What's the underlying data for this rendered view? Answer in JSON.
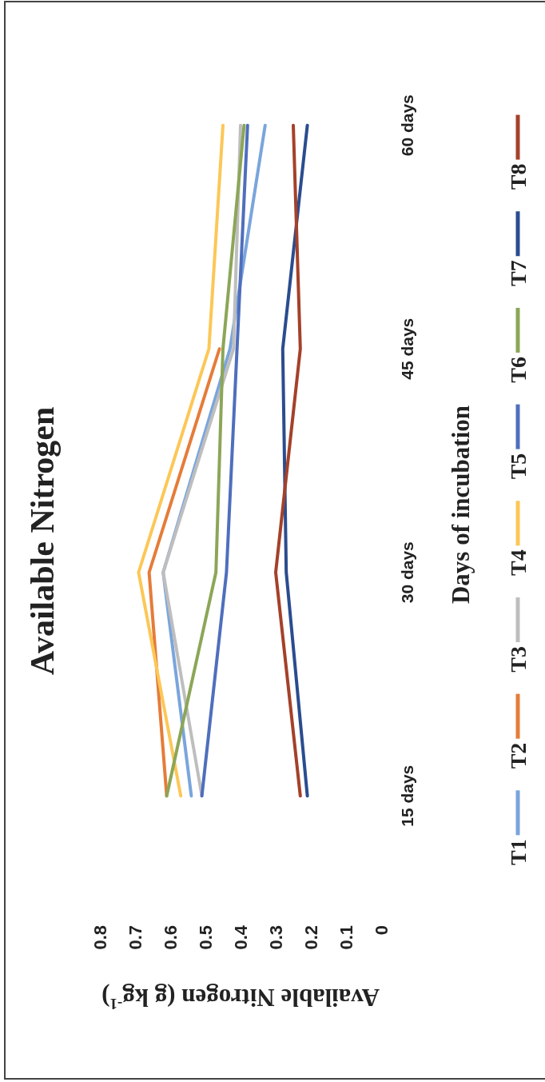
{
  "chart_data": {
    "type": "line",
    "orientation": "horizontal",
    "title": "Available Nitrogen",
    "xlabel": "Available Nitrogen (g kg$^{-1}$)",
    "ylabel": "Days of incubation",
    "categories": [
      "60 days",
      "45 days",
      "30 days",
      "15 days"
    ],
    "xlim": [
      0.8,
      0
    ],
    "xticks": [
      0.8,
      0.7,
      0.6,
      0.5,
      0.4,
      0.3,
      0.2,
      0.1,
      0
    ],
    "grid": false,
    "legend": "right",
    "marker": "none",
    "line_style": "solid",
    "series": [
      {
        "name": "T1",
        "color": "#7aa5dd",
        "values": [
          0.33,
          0.43,
          0.62,
          0.54
        ]
      },
      {
        "name": "T2",
        "color": "#e57c3a",
        "values": [
          null,
          0.46,
          0.66,
          0.61
        ]
      },
      {
        "name": "T3",
        "color": "#bebebe",
        "values": [
          0.4,
          0.42,
          0.62,
          0.51
        ]
      },
      {
        "name": "T4",
        "color": "#fcc757",
        "values": [
          0.45,
          0.49,
          0.69,
          0.57
        ]
      },
      {
        "name": "T5",
        "color": "#4f6fbd",
        "values": [
          0.38,
          0.41,
          0.44,
          0.51
        ]
      },
      {
        "name": "T6",
        "color": "#8ca657",
        "values": [
          0.39,
          0.45,
          0.47,
          0.61
        ]
      },
      {
        "name": "T7",
        "color": "#2b4c8f",
        "values": [
          0.21,
          0.28,
          0.27,
          0.21
        ]
      },
      {
        "name": "T8",
        "color": "#a4412a",
        "values": [
          0.25,
          0.23,
          0.3,
          0.23
        ]
      }
    ]
  }
}
